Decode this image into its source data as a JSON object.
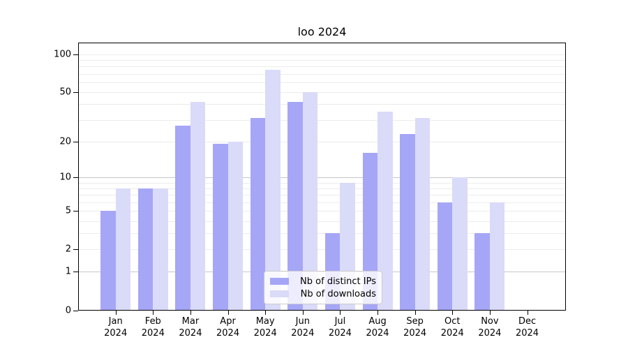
{
  "chart_data": {
    "type": "bar",
    "title": "loo 2024",
    "categories": [
      "Jan 2024",
      "Feb 2024",
      "Mar 2024",
      "Apr 2024",
      "May 2024",
      "Jun 2024",
      "Jul 2024",
      "Aug 2024",
      "Sep 2024",
      "Oct 2024",
      "Nov 2024",
      "Dec 2024"
    ],
    "series": [
      {
        "name": "Nb of distinct IPs",
        "color": "#a6a6f7",
        "values": [
          5,
          8,
          27,
          19,
          31,
          42,
          3,
          16,
          23,
          6,
          3,
          0
        ]
      },
      {
        "name": "Nb of downloads",
        "color": "#dadaf9",
        "values": [
          8,
          8,
          42,
          20,
          75,
          50,
          9,
          35,
          31,
          10,
          6,
          0
        ]
      }
    ],
    "xlabel": "",
    "ylabel": "",
    "yscale": "log10(1+v)",
    "ylim": [
      0,
      128
    ],
    "ytick_labels": [
      "100",
      "50",
      "20",
      "10",
      "5",
      "2",
      "1",
      "0"
    ],
    "ytick_values": [
      100,
      50,
      20,
      10,
      5,
      2,
      1,
      0
    ],
    "grid": "horizontal, minor at 2-9/20-90/100 light, major at 1 and 10 darker",
    "legend_position": "lower center inside axes",
    "colors": {
      "grid_minor": "#ececec",
      "grid_major": "#c6c6c6",
      "axis": "#000000",
      "text": "#000000",
      "background": "#ffffff",
      "legend_border": "#cccccc"
    }
  }
}
